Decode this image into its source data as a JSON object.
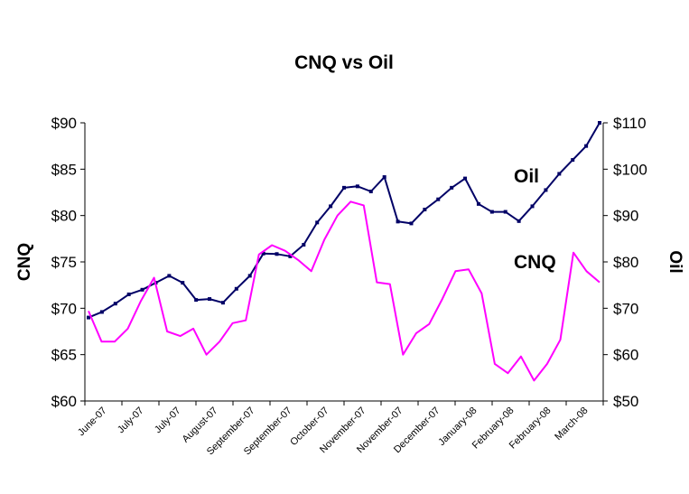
{
  "chart_data": {
    "type": "line",
    "title": "CNQ vs Oil",
    "xlabel": "",
    "ylabel": "CNQ",
    "y2label": "Oil",
    "ylim": [
      60,
      90
    ],
    "y2lim": [
      50,
      110
    ],
    "y_ticks": [
      "$60",
      "$65",
      "$70",
      "$75",
      "$80",
      "$85",
      "$90"
    ],
    "y2_ticks": [
      "$50",
      "$60",
      "$70",
      "$80",
      "$90",
      "$100",
      "$110"
    ],
    "x_tick_labels": [
      "June-07",
      "July-07",
      "July-07",
      "August-07",
      "September-07",
      "September-07",
      "October-07",
      "November-07",
      "November-07",
      "December-07",
      "January-08",
      "February-08",
      "February-08",
      "March-08"
    ],
    "grid": false,
    "series": [
      {
        "name": "Oil",
        "axis": "right",
        "color": "#000066",
        "markers": true,
        "values": [
          68.0,
          69.2,
          71.0,
          73.0,
          74.0,
          75.5,
          77.0,
          75.5,
          71.8,
          72.0,
          71.2,
          74.2,
          77.0,
          81.8,
          81.7,
          81.2,
          83.7,
          88.5,
          92.0,
          96.0,
          96.3,
          95.2,
          98.3,
          88.7,
          88.3,
          91.3,
          93.5,
          96.0,
          98.0,
          92.5,
          90.8,
          90.8,
          88.8,
          92.0,
          95.5,
          99.0,
          102.0,
          105.0,
          110.0
        ]
      },
      {
        "name": "CNQ",
        "axis": "left",
        "color": "#ff00ff",
        "markers": false,
        "values": [
          69.7,
          66.4,
          66.4,
          67.8,
          70.8,
          73.3,
          67.5,
          67.0,
          67.8,
          65.0,
          66.4,
          68.4,
          68.7,
          75.8,
          76.8,
          76.2,
          75.2,
          74.0,
          77.4,
          80.0,
          81.5,
          81.1,
          72.8,
          72.6,
          65.0,
          67.3,
          68.3,
          71.0,
          74.0,
          74.2,
          71.6,
          64.0,
          63.0,
          64.8,
          62.2,
          64.0,
          66.6,
          76.0,
          74.0,
          72.8
        ]
      }
    ]
  }
}
